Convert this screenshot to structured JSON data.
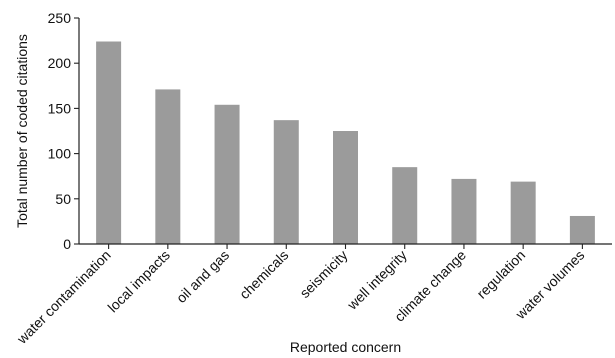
{
  "chart_data": {
    "type": "bar",
    "title": "",
    "xlabel": "Reported concern",
    "ylabel": "Total number of coded citations",
    "categories": [
      "water contamination",
      "local impacts",
      "oil and gas",
      "chemicals",
      "seismicity",
      "well integrity",
      "climate change",
      "regulation",
      "water volumes"
    ],
    "values": [
      224,
      171,
      154,
      137,
      125,
      85,
      72,
      69,
      31
    ],
    "ylim": [
      0,
      250
    ],
    "yticks": [
      0,
      50,
      100,
      150,
      200,
      250
    ],
    "grid": false,
    "legend": "none",
    "colors": {
      "bar": "#9b9b9b",
      "axis": "#222222",
      "text": "#111111"
    }
  }
}
